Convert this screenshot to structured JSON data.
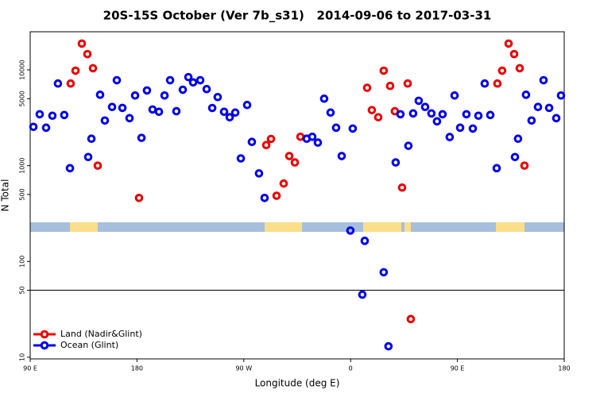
{
  "chart_data": {
    "type": "scatter",
    "title": "20S-15S October (Ver 7b_s31)   2014-09-06 to 2017-03-31",
    "x_label": "Longitude (deg E)",
    "y_label": "N Total",
    "log_y": true,
    "legend": "lower left",
    "hline": 50,
    "xlim": [
      90,
      540
    ],
    "xticks": [
      {
        "value": 90,
        "label": "90 E"
      },
      180,
      {
        "value": 270,
        "label": "90 W"
      },
      {
        "value": 360,
        "label": "0"
      },
      {
        "value": 450,
        "label": "90 E"
      },
      {
        "value": 540,
        "label": "180"
      }
    ],
    "ylim": [
      9.6,
      25000
    ],
    "yticks": [
      10,
      50,
      100,
      500,
      1000,
      5000,
      10000
    ],
    "series": [
      {
        "name": "Land (Nadir&Glint)",
        "color": "#ee0000",
        "x": [
          124.1,
          128.2,
          133.5,
          138.2,
          142.9,
          146.9,
          181.7,
          288.9,
          292.9,
          297.6,
          303.6,
          308.3,
          313.0,
          317.7,
          373.9,
          377.9,
          383.3,
          387.9,
          393.3,
          397.3,
          403.4,
          408.1,
          410.7,
          483.7,
          487.7,
          493.1,
          497.8,
          502.5,
          506.5
        ],
        "values": [
          7200,
          9800,
          18800,
          14600,
          10400,
          1000,
          460,
          1640,
          1900,
          485,
          650,
          1260,
          1080,
          2000,
          6500,
          3800,
          3200,
          9800,
          6800,
          3700,
          590,
          7200,
          25,
          7200,
          9800,
          18800,
          14600,
          10400,
          1000
        ]
      },
      {
        "name": "Ocean (Glint)",
        "color": "#0000ee",
        "x": [
          92.7,
          98.0,
          103.4,
          108.7,
          113.4,
          118.7,
          123.5,
          138.9,
          141.6,
          148.9,
          152.9,
          159.0,
          163.0,
          167.7,
          173.7,
          178.4,
          183.8,
          188.4,
          193.1,
          198.5,
          203.2,
          207.9,
          213.2,
          218.6,
          223.3,
          227.3,
          233.3,
          238.7,
          243.4,
          248.0,
          253.4,
          258.1,
          262.8,
          267.5,
          272.8,
          276.8,
          282.8,
          287.5,
          323.0,
          327.7,
          332.4,
          337.7,
          343.1,
          347.8,
          352.5,
          359.8,
          361.8,
          369.9,
          371.9,
          387.9,
          391.9,
          398.0,
          402.0,
          408.7,
          412.7,
          417.4,
          422.8,
          428.1,
          432.8,
          437.5,
          443.5,
          447.6,
          452.3,
          457.6,
          463.0,
          467.7,
          473.0,
          477.7,
          483.1,
          498.5,
          501.1,
          507.8,
          512.5,
          517.9,
          522.6,
          527.3,
          533.3,
          537.3
        ],
        "values": [
          2540,
          3440,
          2490,
          3320,
          7200,
          3380,
          940,
          1230,
          1910,
          5500,
          2960,
          4100,
          7800,
          4010,
          3130,
          5400,
          1950,
          6100,
          3860,
          3650,
          5400,
          7800,
          3700,
          6200,
          8400,
          7400,
          7800,
          6300,
          4000,
          5200,
          3650,
          3200,
          3580,
          1190,
          4300,
          1770,
          830,
          460,
          1910,
          2000,
          1740,
          5000,
          3580,
          2490,
          1260,
          210,
          2440,
          45,
          164,
          77,
          13,
          1080,
          3440,
          1610,
          3510,
          4760,
          4100,
          3510,
          2900,
          3440,
          1990,
          5400,
          2490,
          3440,
          2440,
          3320,
          7200,
          3380,
          940,
          1230,
          1910,
          5500,
          2960,
          4100,
          7800,
          4010,
          3130,
          5400
        ]
      }
    ]
  }
}
